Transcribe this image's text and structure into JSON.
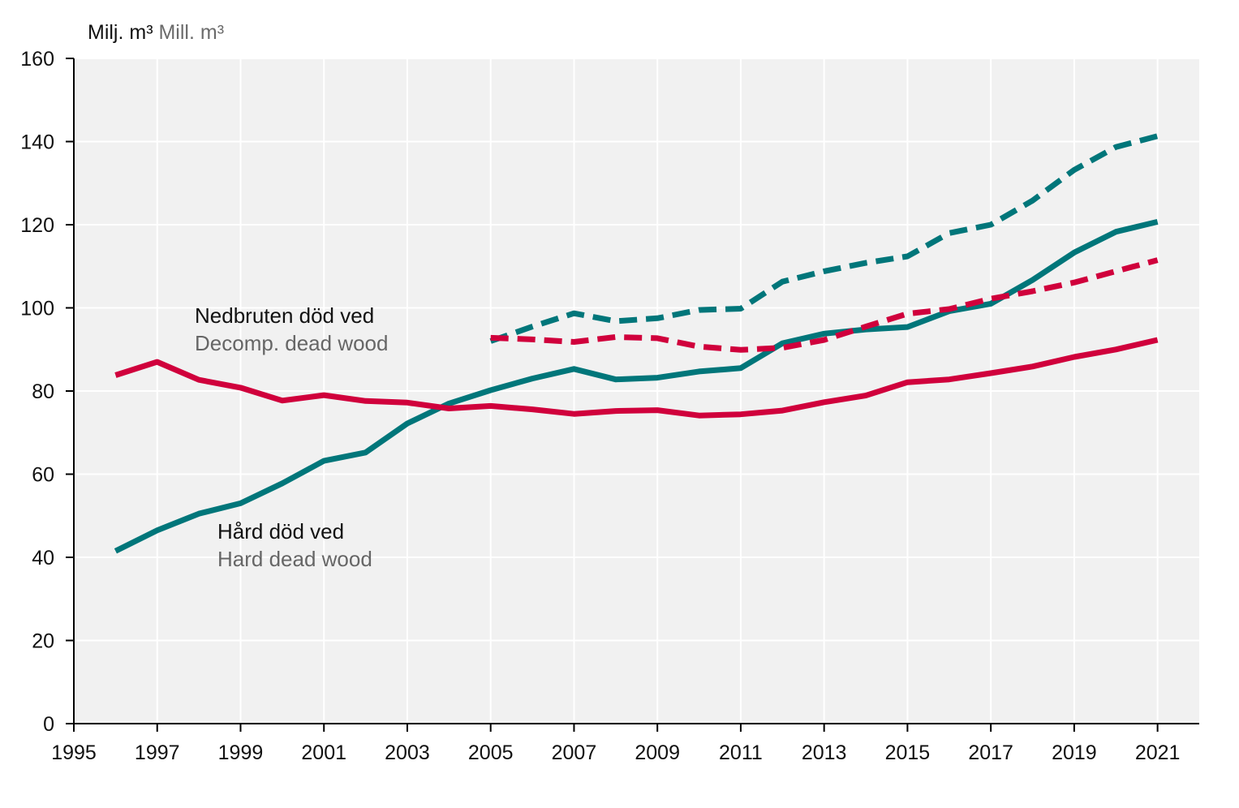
{
  "unit_label": {
    "sv": "Milj. m³",
    "en": "Mill. m³"
  },
  "annotations": {
    "decomp": {
      "sv": "Nedbruten död ved",
      "en": "Decomp. dead wood"
    },
    "hard": {
      "sv": "Hård död ved",
      "en": "Hard dead wood"
    }
  },
  "colors": {
    "hard": "#00767a",
    "decomp": "#d0003c",
    "plot_bg": "#f1f1f1",
    "grid": "#ffffff",
    "axis": "#000000"
  },
  "chart_data": {
    "type": "line",
    "title": "",
    "xlabel": "",
    "ylabel": "Milj. m³ Mill. m³",
    "xlim": [
      1995,
      2022
    ],
    "ylim": [
      0,
      160
    ],
    "x_ticks": [
      1995,
      1997,
      1999,
      2001,
      2003,
      2005,
      2007,
      2009,
      2011,
      2013,
      2015,
      2017,
      2019,
      2021
    ],
    "y_ticks": [
      0,
      20,
      40,
      60,
      80,
      100,
      120,
      140,
      160
    ],
    "grid": true,
    "legend": "none",
    "series": [
      {
        "key": "hard_solid",
        "color": "#00767a",
        "dashed": false,
        "x": [
          1996,
          1997,
          1998,
          1999,
          2000,
          2001,
          2002,
          2003,
          2004,
          2005,
          2006,
          2007,
          2008,
          2009,
          2010,
          2011,
          2012,
          2013,
          2014,
          2015,
          2016,
          2017,
          2018,
          2019,
          2020,
          2021
        ],
        "y": [
          41.5,
          46.5,
          50.5,
          53,
          57.8,
          63.2,
          65.2,
          72.2,
          77,
          80.2,
          83,
          85.3,
          82.8,
          83.2,
          84.7,
          85.5,
          91.5,
          93.8,
          94.8,
          95.4,
          99.2,
          101,
          106.7,
          113.3,
          118.3,
          120.7
        ]
      },
      {
        "key": "decomp_solid",
        "color": "#d0003c",
        "dashed": false,
        "x": [
          1996,
          1997,
          1998,
          1999,
          2000,
          2001,
          2002,
          2003,
          2004,
          2005,
          2006,
          2007,
          2008,
          2009,
          2010,
          2011,
          2012,
          2013,
          2014,
          2015,
          2016,
          2017,
          2018,
          2019,
          2020,
          2021
        ],
        "y": [
          83.8,
          87,
          82.7,
          80.8,
          77.7,
          79,
          77.6,
          77.2,
          75.8,
          76.4,
          75.6,
          74.5,
          75.2,
          75.4,
          74.1,
          74.4,
          75.3,
          77.3,
          78.9,
          82.1,
          82.8,
          84.3,
          85.9,
          88.2,
          90,
          92.3
        ]
      },
      {
        "key": "hard_dashed",
        "color": "#00767a",
        "dashed": true,
        "x": [
          2005,
          2006,
          2007,
          2008,
          2009,
          2010,
          2011,
          2012,
          2013,
          2014,
          2015,
          2016,
          2017,
          2018,
          2019,
          2020,
          2021
        ],
        "y": [
          92,
          95.5,
          98.7,
          96.8,
          97.5,
          99.5,
          99.8,
          106.3,
          108.8,
          110.8,
          112.4,
          118,
          120,
          125.8,
          133.2,
          138.7,
          141.3
        ]
      },
      {
        "key": "decomp_dashed",
        "color": "#d0003c",
        "dashed": true,
        "x": [
          2005,
          2006,
          2007,
          2008,
          2009,
          2010,
          2011,
          2012,
          2013,
          2014,
          2015,
          2016,
          2017,
          2018,
          2019,
          2020,
          2021
        ],
        "y": [
          92.8,
          92.4,
          91.8,
          93,
          92.7,
          90.7,
          89.9,
          90.4,
          92.3,
          95.5,
          98.6,
          99.7,
          102.2,
          104,
          106.1,
          108.8,
          111.5
        ]
      }
    ]
  }
}
